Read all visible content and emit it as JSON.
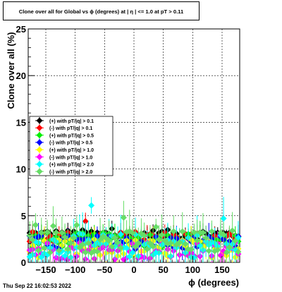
{
  "chart_data": {
    "type": "scatter",
    "title": "Clone  over all for Global vs ϕ (degrees) at |  η | <= 1.0 at pT > 0.11",
    "xlabel": "ϕ (degrees)",
    "ylabel": "Clone  over all (%)",
    "xlim": [
      -180,
      180
    ],
    "ylim": [
      0,
      25
    ],
    "x_ticks": [
      -150,
      -100,
      -50,
      0,
      50,
      100,
      150
    ],
    "y_ticks": [
      0,
      5,
      10,
      15,
      20,
      25
    ],
    "grid": true,
    "legend_position": "left",
    "bins": 72,
    "series": [
      {
        "name": "(+) with pT/|q| > 0.1",
        "color": "#000000",
        "marker": "diamond",
        "level": 3.0,
        "spread": 0.5,
        "err": 0.6
      },
      {
        "name": "(-) with pT/|q| > 0.1",
        "color": "#ff0000",
        "marker": "diamond",
        "level": 2.7,
        "spread": 0.6,
        "err": 0.7
      },
      {
        "name": "(+) with pT/|q| > 0.5",
        "color": "#00ee00",
        "marker": "diamond",
        "level": 2.4,
        "spread": 0.8,
        "err": 1.0
      },
      {
        "name": "(-) with pT/|q| > 0.5",
        "color": "#0000ff",
        "marker": "diamond",
        "level": 2.1,
        "spread": 0.8,
        "err": 1.0
      },
      {
        "name": "(+) with pT/|q| > 1.0",
        "color": "#ffff00",
        "marker": "diamond",
        "level": 1.5,
        "spread": 1.0,
        "err": 1.2
      },
      {
        "name": "(-) with pT/|q| > 1.0",
        "color": "#ff00ff",
        "marker": "diamond",
        "level": 1.3,
        "spread": 1.0,
        "err": 1.2
      },
      {
        "name": "(+) with pT/|q| > 2.0",
        "color": "#00ffff",
        "marker": "diamond",
        "level": 1.8,
        "spread": 1.3,
        "err": 1.6
      },
      {
        "name": "(-) with pT/|q| > 2.0",
        "color": "#66dd66",
        "marker": "diamond",
        "level": 2.2,
        "spread": 1.2,
        "err": 1.6
      }
    ],
    "notable_points": [
      {
        "series": 6,
        "x": -72.5,
        "y": 6.1
      },
      {
        "series": 7,
        "x": -17.5,
        "y": 4.8
      },
      {
        "series": 6,
        "x": 152.5,
        "y": 4.7
      },
      {
        "series": 7,
        "x": -167.5,
        "y": 4.0
      },
      {
        "series": 7,
        "x": -137.5,
        "y": 3.9
      },
      {
        "series": 7,
        "x": -97.5,
        "y": 4.0
      },
      {
        "series": 1,
        "x": -82.5,
        "y": 4.4
      },
      {
        "series": 0,
        "x": -37.5,
        "y": 3.6
      },
      {
        "series": 7,
        "x": 37.5,
        "y": 3.8
      },
      {
        "series": 7,
        "x": 167.5,
        "y": 3.4
      }
    ]
  },
  "footer": {
    "timestamp": "Thu Sep 22 16:02:53 2022"
  }
}
